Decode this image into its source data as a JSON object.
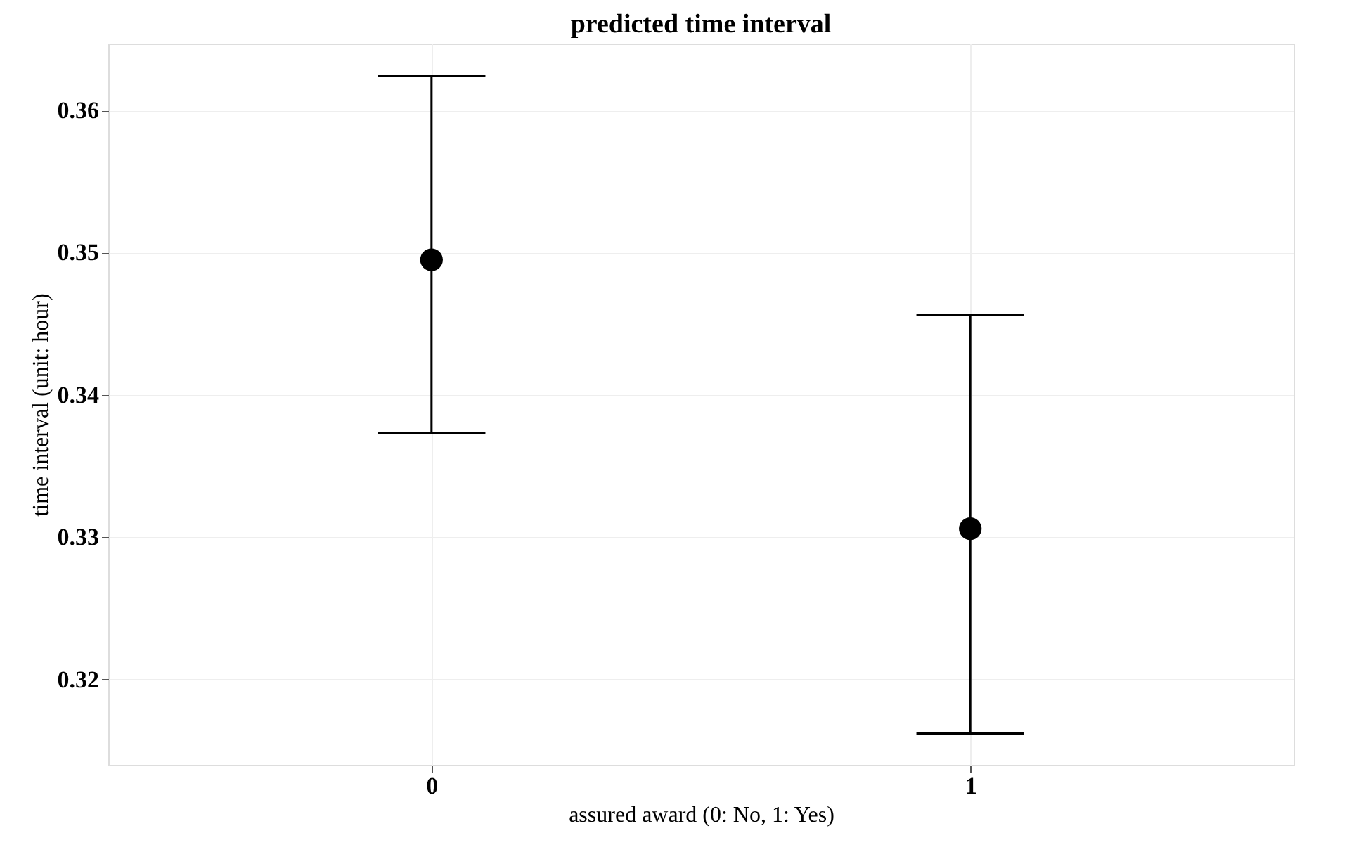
{
  "chart_data": {
    "type": "scatter",
    "title": "predicted time interval",
    "xlabel": "assured award (0: No, 1: Yes)",
    "ylabel": "time interval (unit: hour)",
    "categories": [
      "0",
      "1"
    ],
    "color": "#000000",
    "values": [
      0.3495,
      0.3306
    ],
    "errors": [
      [
        0.3373,
        0.3624
      ],
      [
        0.3162,
        0.3456
      ]
    ],
    "ylim": [
      0.314,
      0.3647
    ],
    "yticks": [
      0.32,
      0.33,
      0.34,
      0.35,
      0.36
    ],
    "grid": true,
    "marker": "circle"
  }
}
